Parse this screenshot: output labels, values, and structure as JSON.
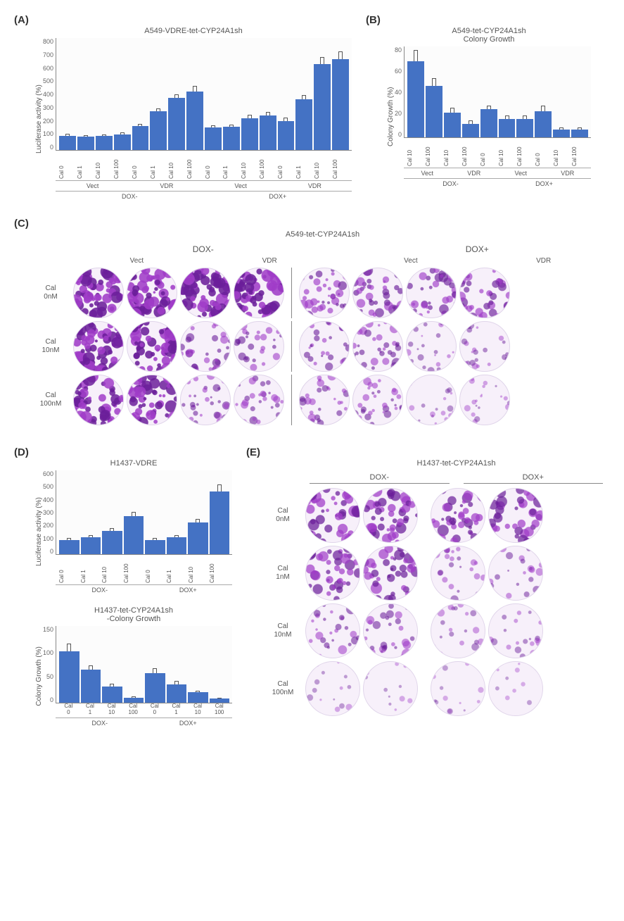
{
  "panels": {
    "A": "(A)",
    "B": "(B)",
    "C": "(C)",
    "D": "(D)",
    "E": "(E)"
  },
  "chartA": {
    "type": "bar",
    "title": "A549-VDRE-tet-CYP24A1sh",
    "ylabel": "Luciferase activity (%)",
    "ylim": [
      0,
      800
    ],
    "ytick_step": 100,
    "bar_color": "#4472c4",
    "background_color": "#ffffff",
    "categories": [
      "Cal 0",
      "Cal 1",
      "Cal 10",
      "Cal 100",
      "Cal 0",
      "Cal 1",
      "Cal 10",
      "Cal 100",
      "Cal 0",
      "Cal 1",
      "Cal 10",
      "Cal 100",
      "Cal 0",
      "Cal 1",
      "Cal 10",
      "Cal 100"
    ],
    "values": [
      100,
      95,
      100,
      110,
      170,
      275,
      370,
      420,
      160,
      165,
      225,
      245,
      205,
      360,
      615,
      650
    ],
    "errors": [
      15,
      12,
      12,
      15,
      18,
      20,
      30,
      40,
      15,
      15,
      25,
      25,
      25,
      35,
      50,
      55
    ],
    "groups_inner": [
      "Vect",
      "VDR",
      "Vect",
      "VDR"
    ],
    "groups_outer": [
      "DOX-",
      "DOX+"
    ]
  },
  "chartB": {
    "type": "bar",
    "title": "A549-tet-CYP24A1sh\nColony Growth",
    "ylabel": "Colony Growth (%)",
    "ylim": [
      0,
      80
    ],
    "ytick_step": 20,
    "bar_color": "#4472c4",
    "categories": [
      "Cal 10",
      "Cal 100",
      "Cal 10",
      "Cal 100",
      "Cal 0",
      "Cal 10",
      "Cal 100",
      "Cal 0",
      "Cal 10",
      "Cal 100"
    ],
    "values": [
      67,
      45,
      22,
      12,
      25,
      16,
      16,
      23,
      7,
      7
    ],
    "errors": [
      10,
      7,
      4,
      3,
      3,
      3,
      3,
      5,
      2,
      2
    ],
    "groups_inner": [
      "Vect",
      "VDR",
      "Vect",
      "VDR"
    ],
    "groups_outer": [
      "DOX-",
      "DOX+"
    ]
  },
  "panelC": {
    "title": "A549-tet-CYP24A1sh",
    "dox_labels": [
      "DOX-",
      "DOX+"
    ],
    "col_labels": [
      "Vect",
      "VDR",
      "Vect",
      "VDR"
    ],
    "row_labels": [
      "Cal\n0nM",
      "Cal\n10nM",
      "Cal\n100nM"
    ],
    "well_size": 72,
    "density": [
      [
        0.95,
        0.95,
        0.95,
        0.95,
        0.55,
        0.55,
        0.55,
        0.55
      ],
      [
        0.95,
        0.95,
        0.45,
        0.45,
        0.45,
        0.45,
        0.25,
        0.25
      ],
      [
        0.9,
        0.9,
        0.4,
        0.4,
        0.4,
        0.4,
        0.18,
        0.18
      ]
    ],
    "stain_color": "#a03cc8",
    "stain_dark": "#6b1e9a",
    "bg": "#f7f0fa"
  },
  "chartD1": {
    "type": "bar",
    "title": "H1437-VDRE",
    "ylabel": "Luciferase activity (%)",
    "ylim": [
      0,
      600
    ],
    "ytick_step": 100,
    "bar_color": "#4472c4",
    "categories": [
      "Cal 0",
      "Cal 1",
      "Cal 10",
      "Cal 100",
      "Cal 0",
      "Cal 1",
      "Cal 10",
      "Cal 100"
    ],
    "values": [
      100,
      120,
      165,
      270,
      100,
      120,
      225,
      450
    ],
    "errors": [
      15,
      15,
      20,
      35,
      15,
      15,
      25,
      50
    ],
    "groups_outer": [
      "DOX-",
      "DOX+"
    ]
  },
  "chartD2": {
    "type": "bar",
    "title": "H1437-tet-CYP24A1sh\n-Colony Growth",
    "ylabel": "Colony Growth (%)",
    "ylim": [
      0,
      150
    ],
    "ytick_step": 50,
    "bar_color": "#4472c4",
    "categories": [
      "Cal 0",
      "Cal 1",
      "Cal 10",
      "Cal 100",
      "Cal 0",
      "Cal 1",
      "Cal 10",
      "Cal 100"
    ],
    "cat_display": [
      "Cal\n0",
      "Cal\n1",
      "Cal\n10",
      "Cal\n100",
      "Cal\n0",
      "Cal\n1",
      "Cal\n10",
      "Cal\n100"
    ],
    "values": [
      100,
      65,
      32,
      10,
      58,
      36,
      20,
      8
    ],
    "errors": [
      15,
      8,
      5,
      3,
      10,
      6,
      4,
      2
    ],
    "groups_outer": [
      "DOX-",
      "DOX+"
    ]
  },
  "panelE": {
    "title": "H1437-tet-CYP24A1sh",
    "dox_labels": [
      "DOX-",
      "DOX+"
    ],
    "row_labels": [
      "Cal\n0nM",
      "Cal\n1nM",
      "Cal\n10nM",
      "Cal\n100nM"
    ],
    "well_size": 78,
    "density": [
      [
        0.7,
        0.7,
        0.65,
        0.65
      ],
      [
        0.65,
        0.65,
        0.3,
        0.3
      ],
      [
        0.4,
        0.4,
        0.22,
        0.22
      ],
      [
        0.12,
        0.1,
        0.08,
        0.06
      ]
    ],
    "stain_color": "#a03cc8",
    "stain_dark": "#6b1e9a",
    "bg": "#f7f0fa"
  }
}
